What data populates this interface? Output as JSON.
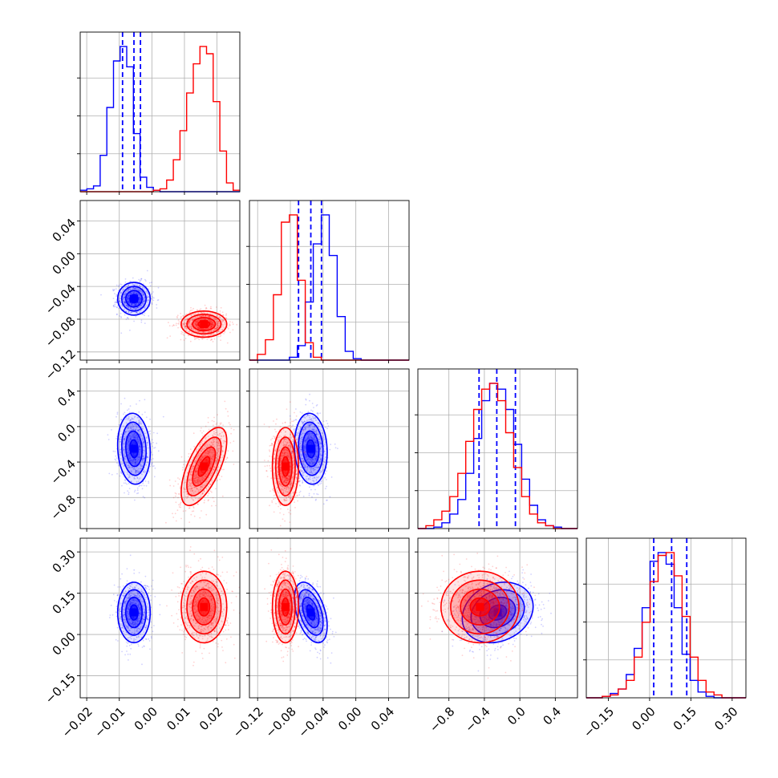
{
  "colors": {
    "series_a": "#0000ff",
    "series_b": "#ff0000",
    "grid": "#b0b0b0",
    "axes": "#000000"
  },
  "chart_data": {
    "type": "corner",
    "grid": true,
    "parameters": [
      {
        "range": [
          -0.022,
          0.027
        ],
        "ticks": [
          -0.02,
          -0.01,
          0.0,
          0.01,
          0.02
        ],
        "tick_labels": [
          "−0.02",
          "−0.01",
          "0.00",
          "0.01",
          "0.02"
        ]
      },
      {
        "range": [
          -0.13,
          0.065
        ],
        "ticks": [
          -0.12,
          -0.08,
          -0.04,
          0.0,
          0.04
        ],
        "tick_labels": [
          "−0.12",
          "−0.08",
          "−0.04",
          "0.00",
          "0.04"
        ]
      },
      {
        "range": [
          -1.15,
          0.65
        ],
        "ticks": [
          -0.8,
          -0.4,
          0.0,
          0.4
        ],
        "tick_labels": [
          "−0.8",
          "−0.4",
          "0.0",
          "0.4"
        ]
      },
      {
        "range": [
          -0.23,
          0.35
        ],
        "ticks": [
          -0.15,
          0.0,
          0.15,
          0.3
        ],
        "tick_labels": [
          "−0.15",
          "0.00",
          "0.15",
          "0.30"
        ]
      }
    ],
    "series": [
      {
        "color": "#0000ff",
        "means": [
          -0.0055,
          -0.055,
          -0.25,
          0.08
        ],
        "sigmas": [
          0.0025,
          0.01,
          0.2,
          0.055
        ],
        "correlations": {
          "0-1": 0.0,
          "0-2": -0.1,
          "0-3": 0.0,
          "1-2": -0.1,
          "1-3": -0.45,
          "2-3": 0.2
        },
        "quantiles": [
          [
            -0.009,
            -0.0055,
            -0.0035
          ],
          [
            -0.07,
            -0.055,
            -0.042
          ],
          [
            -0.46,
            -0.26,
            -0.05
          ],
          [
            0.015,
            0.08,
            0.135
          ]
        ],
        "histograms": [
          [
            1,
            2,
            4,
            25,
            58,
            90,
            100,
            86,
            40,
            10,
            3,
            1,
            0,
            0,
            0,
            0,
            0,
            0,
            0,
            0,
            0,
            0,
            0,
            0
          ],
          [
            0,
            0,
            0,
            0,
            0,
            2,
            10,
            40,
            80,
            100,
            72,
            30,
            6,
            1,
            0,
            0,
            0,
            0,
            0,
            0
          ],
          [
            0,
            0,
            1,
            4,
            10,
            20,
            38,
            62,
            88,
            100,
            96,
            82,
            58,
            34,
            16,
            6,
            2,
            1,
            0,
            0
          ],
          [
            0,
            0,
            1,
            3,
            6,
            16,
            34,
            62,
            94,
            100,
            92,
            62,
            30,
            12,
            4,
            1,
            0,
            0,
            0,
            0
          ]
        ]
      },
      {
        "color": "#ff0000",
        "means": [
          0.016,
          -0.086,
          -0.45,
          0.1
        ],
        "sigmas": [
          0.0035,
          0.008,
          0.22,
          0.065
        ],
        "correlations": {
          "0-1": 0.0,
          "0-2": 0.65,
          "0-3": 0.0,
          "1-2": 0.0,
          "1-3": 0.0,
          "2-3": 0.0
        },
        "quantiles": [],
        "histograms": [
          [
            0,
            0,
            0,
            0,
            0,
            0,
            0,
            0,
            0,
            0,
            0,
            1,
            2,
            8,
            22,
            42,
            68,
            88,
            100,
            95,
            62,
            28,
            6,
            1
          ],
          [
            0,
            4,
            14,
            45,
            95,
            100,
            55,
            12,
            2,
            0,
            0,
            0,
            0,
            0,
            0,
            0,
            0,
            0,
            0,
            0
          ],
          [
            0,
            2,
            6,
            12,
            22,
            38,
            60,
            82,
            96,
            100,
            88,
            66,
            42,
            22,
            10,
            4,
            2,
            0,
            0,
            0
          ],
          [
            0,
            0,
            1,
            2,
            6,
            12,
            28,
            52,
            80,
            98,
            100,
            84,
            56,
            28,
            12,
            4,
            2,
            0,
            0,
            0
          ]
        ]
      }
    ]
  }
}
